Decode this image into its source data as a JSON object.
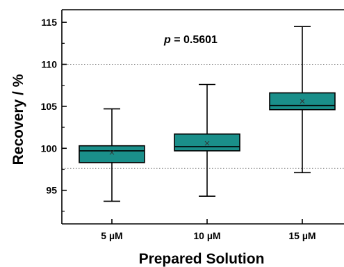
{
  "chart_data": {
    "type": "box",
    "xlabel": "Prepared Solution",
    "ylabel": "Recovery / %",
    "categories": [
      "5 µM",
      "10 µM",
      "15 µM"
    ],
    "ylim": [
      91,
      116.5
    ],
    "yticks": [
      95,
      100,
      105,
      110,
      115
    ],
    "ytick_labels": [
      "95",
      "100",
      "105",
      "110",
      "115"
    ],
    "reference_lines": [
      97.6,
      110
    ],
    "annotation": {
      "prefix": "p",
      "text": " = 0.5601"
    },
    "box_color": "#1a8f8a",
    "boxes": [
      {
        "category": "5 µM",
        "min": 93.7,
        "q1": 98.3,
        "median": 99.7,
        "q3": 100.3,
        "max": 104.7,
        "mean": 99.5
      },
      {
        "category": "10 µM",
        "min": 94.3,
        "q1": 99.7,
        "median": 100.2,
        "q3": 101.7,
        "max": 107.6,
        "mean": 100.6
      },
      {
        "category": "15 µM",
        "min": 97.1,
        "q1": 104.6,
        "median": 105.1,
        "q3": 106.6,
        "max": 114.5,
        "mean": 105.6
      }
    ]
  }
}
